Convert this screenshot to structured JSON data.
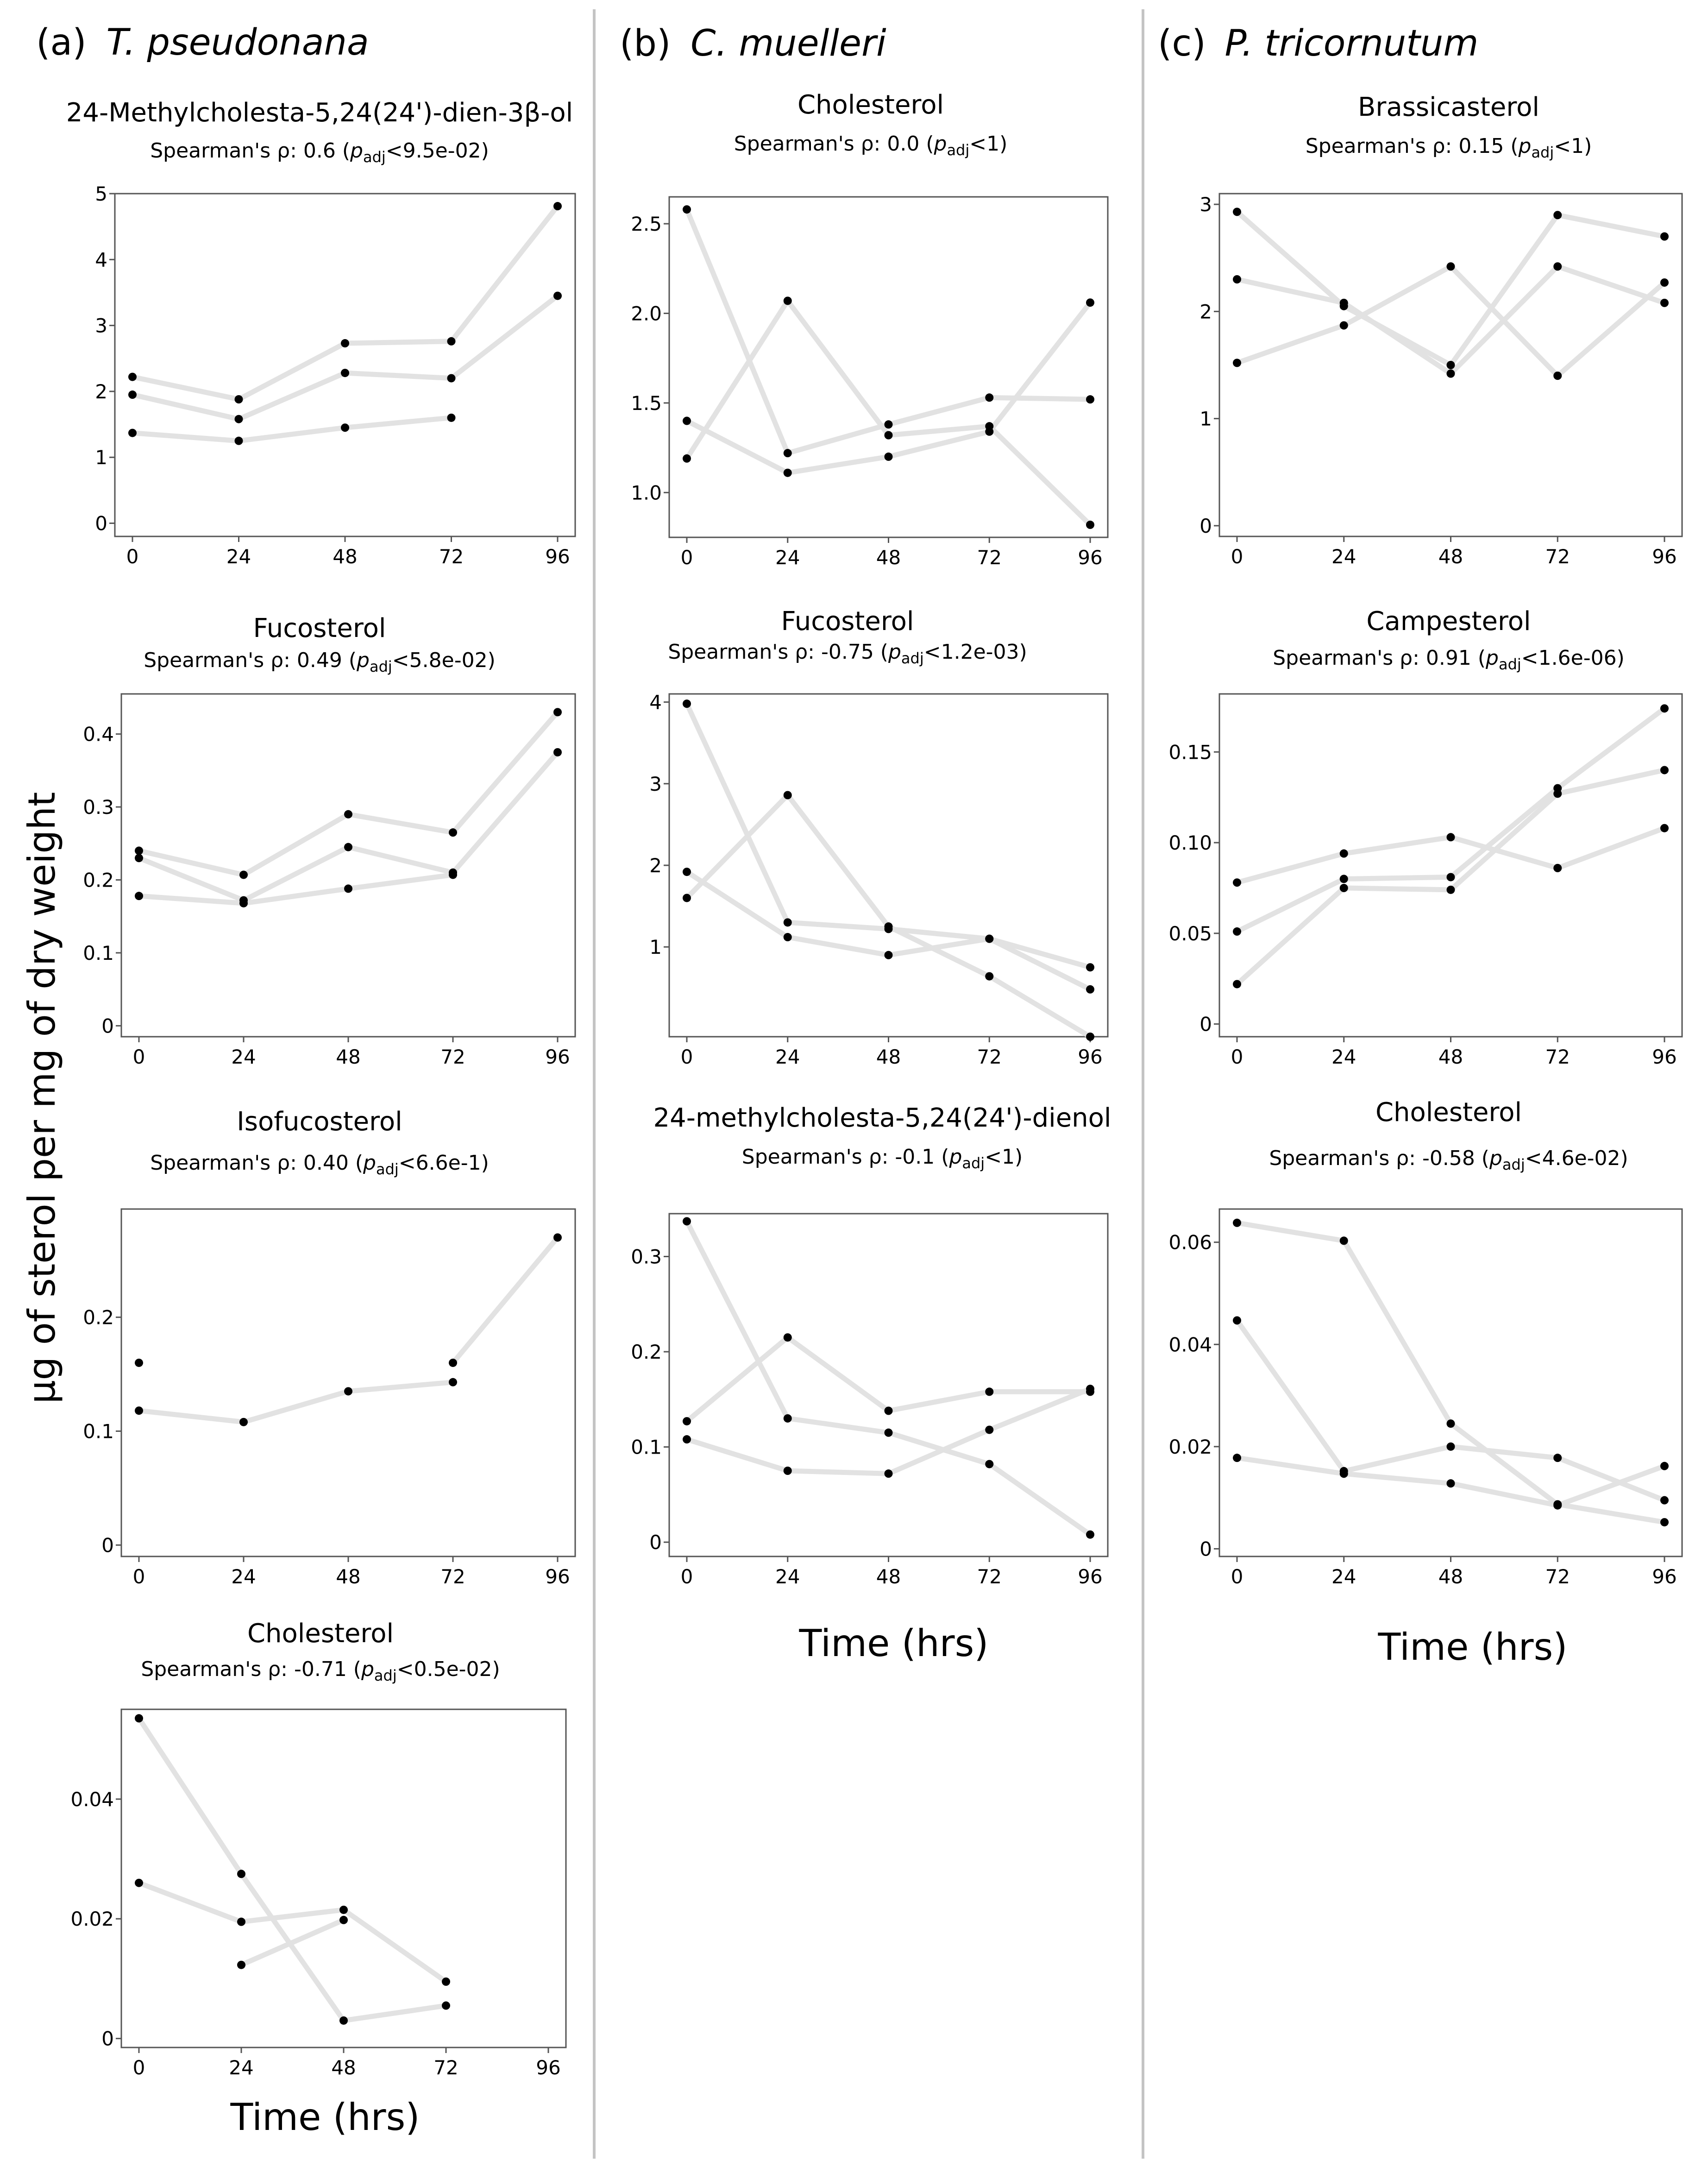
{
  "y_axis_label": "µg of sterol per mg of dry weight",
  "x_axis_label": "Time (hrs)",
  "columns": [
    {
      "letter": "(a)",
      "species": "T. pseudonana"
    },
    {
      "letter": "(b)",
      "species": "C. muelleri"
    },
    {
      "letter": "(c)",
      "species": "P. tricornutum"
    }
  ],
  "stat_prefix": "Spearman's ρ: ",
  "p_symbol": "p",
  "p_subscript": "adj",
  "chart_data": [
    {
      "id": "a1",
      "type": "line",
      "column": 0,
      "title": "24-Methylcholesta-5,24(24')-dien-3β-ol",
      "rho": "0.6",
      "padj": "<9.5e-02",
      "x": [
        0,
        24,
        48,
        72,
        96
      ],
      "xticks": [
        "0",
        "24",
        "48",
        "72",
        "96"
      ],
      "ylim": [
        -0.2,
        5
      ],
      "yticks": [
        0,
        1,
        2,
        3,
        4,
        5
      ],
      "ytick_labels": [
        "0",
        "1",
        "2",
        "3",
        "4",
        "5"
      ],
      "series": [
        {
          "name": "rep1",
          "values": [
            2.22,
            1.88,
            2.73,
            2.76,
            4.81
          ]
        },
        {
          "name": "rep2",
          "values": [
            1.95,
            1.58,
            2.28,
            2.2,
            3.45
          ]
        },
        {
          "name": "rep3",
          "values": [
            1.37,
            1.25,
            1.45,
            1.6,
            null
          ]
        }
      ]
    },
    {
      "id": "a2",
      "type": "line",
      "column": 0,
      "title": "Fucosterol",
      "rho": "0.49",
      "padj": "<5.8e-02",
      "x": [
        0,
        24,
        48,
        72,
        96
      ],
      "xticks": [
        "0",
        "24",
        "48",
        "72",
        "96"
      ],
      "ylim": [
        -0.015,
        0.455
      ],
      "yticks": [
        0,
        0.1,
        0.2,
        0.3,
        0.4
      ],
      "ytick_labels": [
        "0",
        "0.1",
        "0.2",
        "0.3",
        "0.4"
      ],
      "series": [
        {
          "name": "rep1",
          "values": [
            0.24,
            0.207,
            0.29,
            0.265,
            0.43
          ]
        },
        {
          "name": "rep2",
          "values": [
            0.23,
            0.172,
            0.245,
            0.21,
            0.375
          ]
        },
        {
          "name": "rep3",
          "values": [
            0.178,
            0.168,
            0.188,
            0.207,
            null
          ]
        }
      ]
    },
    {
      "id": "a3",
      "type": "line",
      "column": 0,
      "title": "Isofucosterol",
      "rho": "0.40",
      "padj": "<6.6e-1",
      "x": [
        0,
        24,
        48,
        72,
        96
      ],
      "xticks": [
        "0",
        "24",
        "48",
        "72",
        "96"
      ],
      "ylim": [
        -0.01,
        0.295
      ],
      "yticks": [
        0,
        0.1,
        0.2
      ],
      "ytick_labels": [
        "0",
        "0.1",
        "0.2"
      ],
      "series": [
        {
          "name": "rep1",
          "values": [
            0.16,
            null,
            null,
            0.16,
            0.27
          ]
        },
        {
          "name": "rep2",
          "values": [
            0.118,
            0.108,
            0.135,
            0.143,
            null
          ]
        }
      ]
    },
    {
      "id": "a4",
      "type": "line",
      "column": 0,
      "title": "Cholesterol",
      "rho": "-0.71",
      "padj": "<0.5e-02",
      "x": [
        0,
        24,
        48,
        72,
        96
      ],
      "xticks": [
        "0",
        "24",
        "48",
        "72",
        "96"
      ],
      "ylim": [
        -0.0015,
        0.055
      ],
      "yticks": [
        0,
        0.02,
        0.04
      ],
      "ytick_labels": [
        "0",
        "0.02",
        "0.04"
      ],
      "series": [
        {
          "name": "rep1",
          "values": [
            0.0535,
            0.0275,
            0.003,
            0.0055,
            null
          ]
        },
        {
          "name": "rep2",
          "values": [
            0.026,
            0.0195,
            0.0215,
            0.0095,
            null
          ]
        },
        {
          "name": "rep3",
          "values": [
            null,
            0.0123,
            0.0198,
            null,
            null
          ]
        }
      ]
    },
    {
      "id": "b1",
      "type": "line",
      "column": 1,
      "title": "Cholesterol",
      "rho": "0.0",
      "padj": "<1",
      "x": [
        0,
        24,
        48,
        72,
        96
      ],
      "xticks": [
        "0",
        "24",
        "48",
        "72",
        "96"
      ],
      "ylim": [
        0.75,
        2.65
      ],
      "yticks": [
        1.0,
        1.5,
        2.0,
        2.5
      ],
      "ytick_labels": [
        "1.0",
        "1.5",
        "2.0",
        "2.5"
      ],
      "series": [
        {
          "name": "rep1",
          "values": [
            2.58,
            1.22,
            1.38,
            1.53,
            1.52
          ]
        },
        {
          "name": "rep2",
          "values": [
            1.4,
            1.11,
            1.2,
            1.34,
            2.06
          ]
        },
        {
          "name": "rep3",
          "values": [
            1.19,
            2.07,
            1.32,
            1.37,
            0.82
          ]
        }
      ]
    },
    {
      "id": "b2",
      "type": "line",
      "column": 1,
      "title": "Fucosterol",
      "rho": "-0.75",
      "padj": "<1.2e-03",
      "x": [
        0,
        24,
        48,
        72,
        96
      ],
      "xticks": [
        "0",
        "24",
        "48",
        "72",
        "96"
      ],
      "ylim": [
        -0.1,
        4.1
      ],
      "yticks": [
        1,
        2,
        3,
        4
      ],
      "ytick_labels": [
        "1",
        "2",
        "3",
        "4"
      ],
      "series": [
        {
          "name": "rep1",
          "values": [
            3.98,
            1.3,
            1.22,
            1.1,
            0.48
          ]
        },
        {
          "name": "rep2",
          "values": [
            1.92,
            1.12,
            0.9,
            1.1,
            0.75
          ]
        },
        {
          "name": "rep3",
          "values": [
            1.6,
            2.86,
            1.25,
            0.64,
            -0.1
          ]
        }
      ]
    },
    {
      "id": "b3",
      "type": "line",
      "column": 1,
      "title": "24-methylcholesta-5,24(24')-dienol",
      "rho": "-0.1",
      "padj": "<1",
      "x": [
        0,
        24,
        48,
        72,
        96
      ],
      "xticks": [
        "0",
        "24",
        "48",
        "72",
        "96"
      ],
      "ylim": [
        -0.015,
        0.345
      ],
      "yticks": [
        0,
        0.1,
        0.2,
        0.3
      ],
      "ytick_labels": [
        "0",
        "0.1",
        "0.2",
        "0.3"
      ],
      "series": [
        {
          "name": "rep1",
          "values": [
            0.337,
            0.13,
            0.115,
            0.082,
            0.008
          ]
        },
        {
          "name": "rep2",
          "values": [
            0.127,
            0.215,
            0.138,
            0.158,
            0.158
          ]
        },
        {
          "name": "rep3",
          "values": [
            0.108,
            0.075,
            0.072,
            0.118,
            0.161
          ]
        }
      ]
    },
    {
      "id": "c1",
      "type": "line",
      "column": 2,
      "title": "Brassicasterol",
      "rho": "0.15",
      "padj": "<1",
      "x": [
        0,
        24,
        48,
        72,
        96
      ],
      "xticks": [
        "0",
        "24",
        "48",
        "72",
        "96"
      ],
      "ylim": [
        -0.1,
        3.1
      ],
      "yticks": [
        0,
        1,
        2,
        3
      ],
      "ytick_labels": [
        "0",
        "1",
        "2",
        "3"
      ],
      "series": [
        {
          "name": "rep1",
          "values": [
            2.93,
            2.05,
            1.5,
            2.9,
            2.7
          ]
        },
        {
          "name": "rep2",
          "values": [
            2.3,
            2.08,
            1.42,
            2.42,
            2.08
          ]
        },
        {
          "name": "rep3",
          "values": [
            1.52,
            1.87,
            2.42,
            1.4,
            2.27
          ]
        }
      ]
    },
    {
      "id": "c2",
      "type": "line",
      "column": 2,
      "title": "Campesterol",
      "rho": "0.91",
      "padj": "<1.6e-06",
      "x": [
        0,
        24,
        48,
        72,
        96
      ],
      "xticks": [
        "0",
        "24",
        "48",
        "72",
        "96"
      ],
      "ylim": [
        -0.007,
        0.182
      ],
      "yticks": [
        0,
        0.05,
        0.1,
        0.15
      ],
      "ytick_labels": [
        "0",
        "0.05",
        "0.10",
        "0.15"
      ],
      "series": [
        {
          "name": "rep1",
          "values": [
            0.078,
            0.094,
            0.103,
            0.086,
            0.108
          ]
        },
        {
          "name": "rep2",
          "values": [
            0.051,
            0.08,
            0.081,
            0.13,
            0.174
          ]
        },
        {
          "name": "rep3",
          "values": [
            0.022,
            0.075,
            0.074,
            0.127,
            0.14
          ]
        }
      ]
    },
    {
      "id": "c3",
      "type": "line",
      "column": 2,
      "title": "Cholesterol",
      "rho": "-0.58",
      "padj": "<4.6e-02",
      "x": [
        0,
        24,
        48,
        72,
        96
      ],
      "xticks": [
        "0",
        "24",
        "48",
        "72",
        "96"
      ],
      "ylim": [
        -0.0015,
        0.0665
      ],
      "yticks": [
        0,
        0.02,
        0.04,
        0.06
      ],
      "ytick_labels": [
        "0",
        "0.02",
        "0.04",
        "0.06"
      ],
      "series": [
        {
          "name": "rep1",
          "values": [
            0.0638,
            0.0603,
            0.0245,
            0.0087,
            0.0052
          ]
        },
        {
          "name": "rep2",
          "values": [
            0.0447,
            0.0152,
            0.02,
            0.0178,
            0.0095
          ]
        },
        {
          "name": "rep3",
          "values": [
            0.0178,
            0.0147,
            0.0128,
            0.0085,
            0.0162
          ]
        }
      ]
    }
  ]
}
